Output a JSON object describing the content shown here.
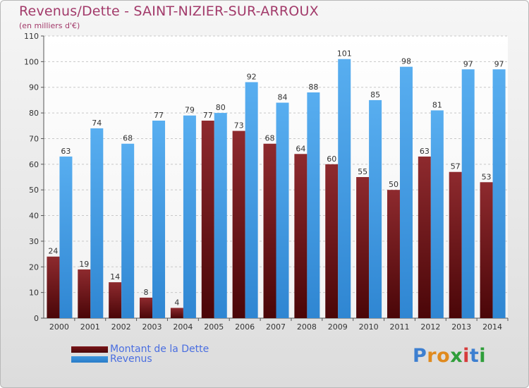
{
  "title": "Revenus/Dette - SAINT-NIZIER-SUR-ARROUX",
  "subtitle": "(en milliers d'€)",
  "logo": "Proxiti",
  "colors": {
    "title": "#a23a6a",
    "debt": "#7a1518",
    "revenue": "#3d95de",
    "legend_text": "#4a6ee0"
  },
  "legend": [
    {
      "label": "Montant de la Dette",
      "series": "debt"
    },
    {
      "label": "Revenus",
      "series": "revenue"
    }
  ],
  "chart_data": {
    "type": "bar",
    "title": "Revenus/Dette - SAINT-NIZIER-SUR-ARROUX",
    "ylabel": "(en milliers d'€)",
    "xlabel": "",
    "ylim": [
      0,
      110
    ],
    "yticks": [
      0,
      10,
      20,
      30,
      40,
      50,
      60,
      70,
      80,
      90,
      100,
      110
    ],
    "grid": true,
    "legend_position": "bottom-left",
    "categories": [
      "2000",
      "2001",
      "2002",
      "2003",
      "2004",
      "2005",
      "2006",
      "2007",
      "2008",
      "2009",
      "2010",
      "2011",
      "2012",
      "2013",
      "2014"
    ],
    "series": [
      {
        "name": "Montant de la Dette",
        "key": "debt",
        "values": [
          24,
          19,
          14,
          8,
          4,
          77,
          73,
          68,
          64,
          60,
          55,
          50,
          63,
          57,
          53
        ]
      },
      {
        "name": "Revenus",
        "key": "revenue",
        "values": [
          63,
          74,
          68,
          77,
          79,
          80,
          92,
          84,
          88,
          101,
          85,
          98,
          81,
          97,
          97
        ]
      }
    ]
  }
}
